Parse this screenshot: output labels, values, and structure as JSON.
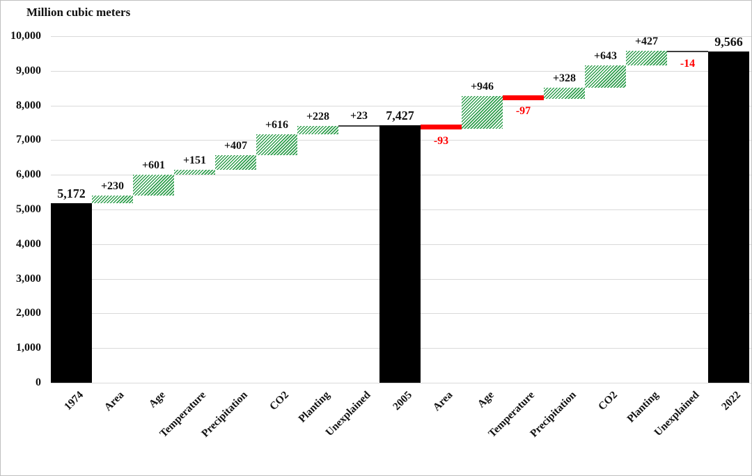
{
  "chart_data": {
    "type": "bar",
    "subtype": "waterfall",
    "title": "Million cubic meters",
    "xlabel": "",
    "ylabel": "Million cubic meters",
    "ylim": [
      0,
      10000
    ],
    "ytick_step": 1000,
    "ytick_labels": [
      "0",
      "1,000",
      "2,000",
      "3,000",
      "4,000",
      "5,000",
      "6,000",
      "7,000",
      "8,000",
      "9,000",
      "10,000"
    ],
    "grid": true,
    "legend": false,
    "categories": [
      "1974",
      "Area",
      "Age",
      "Temperature",
      "Precipitation",
      "CO2",
      "Planting",
      "Unexplained",
      "2005",
      "Area",
      "Age",
      "Temperature",
      "Precipitation",
      "CO2",
      "Planting",
      "Unexplained",
      "2022"
    ],
    "steps": [
      {
        "label": "1974",
        "type": "total",
        "value": 5172,
        "display": "5,172"
      },
      {
        "label": "Area",
        "type": "increase",
        "value": 230,
        "display": "+230"
      },
      {
        "label": "Age",
        "type": "increase",
        "value": 601,
        "display": "+601"
      },
      {
        "label": "Temperature",
        "type": "increase",
        "value": 151,
        "display": "+151"
      },
      {
        "label": "Precipitation",
        "type": "increase",
        "value": 407,
        "display": "+407"
      },
      {
        "label": "CO2",
        "type": "increase",
        "value": 616,
        "display": "+616"
      },
      {
        "label": "Planting",
        "type": "increase",
        "value": 228,
        "display": "+228"
      },
      {
        "label": "Unexplained",
        "type": "increase",
        "value": 23,
        "display": "+23"
      },
      {
        "label": "2005",
        "type": "total",
        "value": 7427,
        "display": "7,427"
      },
      {
        "label": "Area",
        "type": "decrease",
        "value": -93,
        "display": "-93"
      },
      {
        "label": "Age",
        "type": "increase",
        "value": 946,
        "display": "+946"
      },
      {
        "label": "Temperature",
        "type": "decrease",
        "value": -97,
        "display": "-97"
      },
      {
        "label": "Precipitation",
        "type": "increase",
        "value": 328,
        "display": "+328"
      },
      {
        "label": "CO2",
        "type": "increase",
        "value": 643,
        "display": "+643"
      },
      {
        "label": "Planting",
        "type": "increase",
        "value": 427,
        "display": "+427"
      },
      {
        "label": "Unexplained",
        "type": "decrease",
        "value": -14,
        "display": "-14"
      },
      {
        "label": "2022",
        "type": "total",
        "value": 9566,
        "display": "9,566"
      }
    ]
  },
  "colors": {
    "total_bar": "#000000",
    "increase_hatch": "#2E9E4C",
    "decrease_bar": "#FF0000",
    "decrease_label": "#FF0000",
    "tiny_bar": "#3D3D3D",
    "gridline": "#D9D9D9",
    "text": "#111111",
    "frame_border": "#BFBFBF"
  }
}
